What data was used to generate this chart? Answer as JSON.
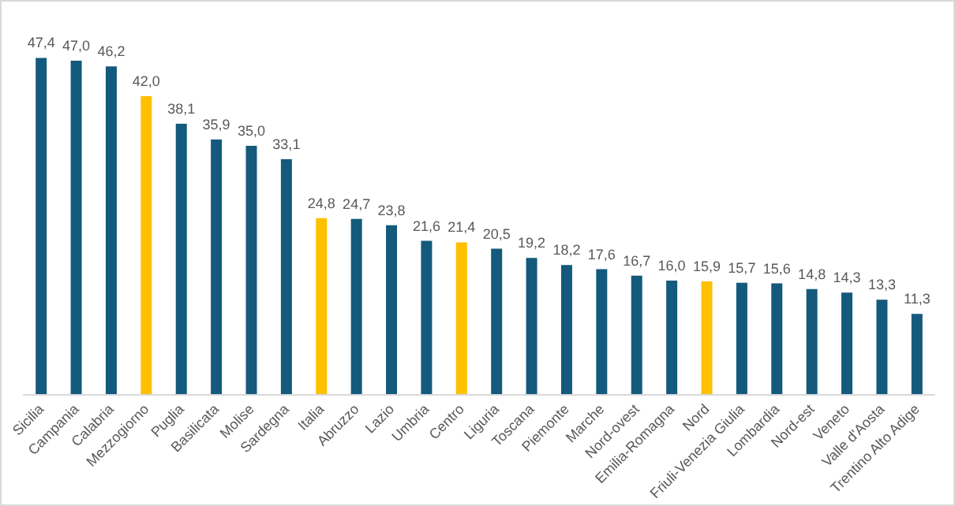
{
  "chart_data": {
    "type": "bar",
    "categories": [
      "Sicilia",
      "Campania",
      "Calabria",
      "Mezzogiorno",
      "Puglia",
      "Basilicata",
      "Molise",
      "Sardegna",
      "Italia",
      "Abruzzo",
      "Lazio",
      "Umbria",
      "Centro",
      "Liguria",
      "Toscana",
      "Piemonte",
      "Marche",
      "Nord-ovest",
      "Emilia-Romagna",
      "Nord",
      "Friuli-Venezia Giulia",
      "Lombardia",
      "Nord-est",
      "Veneto",
      "Valle d'Aosta",
      "Trentino Alto Adige"
    ],
    "values": [
      47.4,
      47.0,
      46.2,
      42.0,
      38.1,
      35.9,
      35.0,
      33.1,
      24.8,
      24.7,
      23.8,
      21.6,
      21.4,
      20.5,
      19.2,
      18.2,
      17.6,
      16.7,
      16.0,
      15.9,
      15.7,
      15.6,
      14.8,
      14.3,
      13.3,
      11.3
    ],
    "colors": [
      "#145a7c",
      "#145a7c",
      "#145a7c",
      "#ffc000",
      "#145a7c",
      "#145a7c",
      "#145a7c",
      "#145a7c",
      "#ffc000",
      "#145a7c",
      "#145a7c",
      "#145a7c",
      "#ffc000",
      "#145a7c",
      "#145a7c",
      "#145a7c",
      "#145a7c",
      "#145a7c",
      "#145a7c",
      "#ffc000",
      "#145a7c",
      "#145a7c",
      "#145a7c",
      "#145a7c",
      "#145a7c",
      "#145a7c"
    ],
    "value_labels": [
      "47,4",
      "47,0",
      "46,2",
      "42,0",
      "38,1",
      "35,9",
      "35,0",
      "33,1",
      "24,8",
      "24,7",
      "23,8",
      "21,6",
      "21,4",
      "20,5",
      "19,2",
      "18,2",
      "17,6",
      "16,7",
      "16,0",
      "15,9",
      "15,7",
      "15,6",
      "14,8",
      "14,3",
      "13,3",
      "11,3"
    ],
    "grid": false
  }
}
